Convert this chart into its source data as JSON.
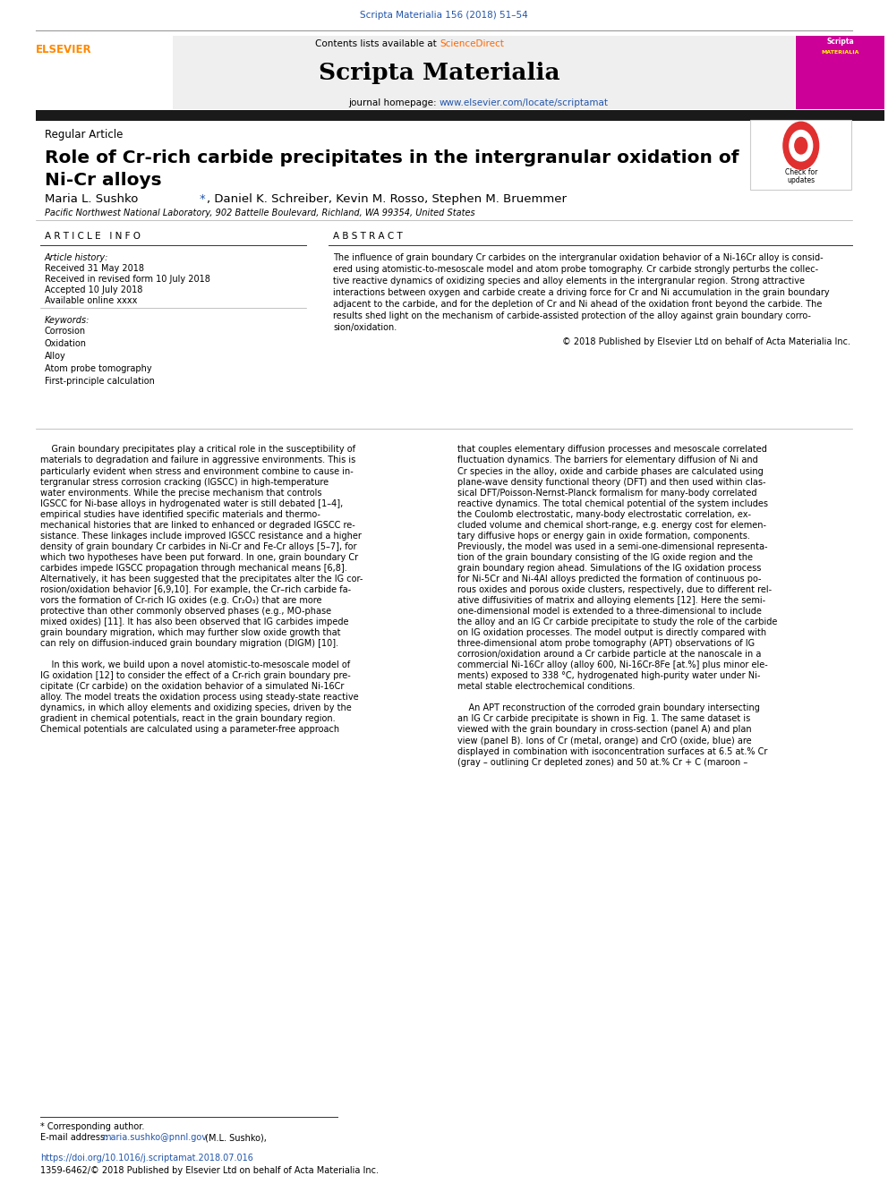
{
  "page_width": 9.92,
  "page_height": 13.23,
  "bg_color": "#ffffff",
  "top_journal_line": "Scripta Materialia 156 (2018) 51–54",
  "top_journal_color": "#2255aa",
  "header_bg": "#efefef",
  "contents_text": "Contents lists available at ",
  "sciencedirect_text": "ScienceDirect",
  "sciencedirect_color": "#ff6600",
  "journal_name": "Scripta Materialia",
  "journal_homepage_prefix": "journal homepage: ",
  "journal_url": "www.elsevier.com/locate/scriptamat",
  "journal_url_color": "#2255aa",
  "article_type": "Regular Article",
  "title_line1": "Role of Cr-rich carbide precipitates in the intergranular oxidation of",
  "title_line2": "Ni-Cr alloys",
  "author_star_color": "#2255aa",
  "affiliation": "Pacific Northwest National Laboratory, 902 Battelle Boulevard, Richland, WA 99354, United States",
  "section_article_info": "A R T I C L E   I N F O",
  "section_abstract": "A B S T R A C T",
  "article_history_label": "Article history:",
  "received": "Received 31 May 2018",
  "revised": "Received in revised form 10 July 2018",
  "accepted": "Accepted 10 July 2018",
  "available": "Available online xxxx",
  "keywords_label": "Keywords:",
  "keywords": [
    "Corrosion",
    "Oxidation",
    "Alloy",
    "Atom probe tomography",
    "First-principle calculation"
  ],
  "copyright_text": "© 2018 Published by Elsevier Ltd on behalf of Acta Materialia Inc.",
  "body1_lines": [
    "    Grain boundary precipitates play a critical role in the susceptibility of",
    "materials to degradation and failure in aggressive environments. This is",
    "particularly evident when stress and environment combine to cause in-",
    "tergranular stress corrosion cracking (IGSCC) in high-temperature",
    "water environments. While the precise mechanism that controls",
    "IGSCC for Ni-base alloys in hydrogenated water is still debated [1–4],",
    "empirical studies have identified specific materials and thermo-",
    "mechanical histories that are linked to enhanced or degraded IGSCC re-",
    "sistance. These linkages include improved IGSCC resistance and a higher",
    "density of grain boundary Cr carbides in Ni-Cr and Fe-Cr alloys [5–7], for",
    "which two hypotheses have been put forward. In one, grain boundary Cr",
    "carbides impede IGSCC propagation through mechanical means [6,8].",
    "Alternatively, it has been suggested that the precipitates alter the IG cor-",
    "rosion/oxidation behavior [6,9,10]. For example, the Cr–rich carbide fa-",
    "vors the formation of Cr-rich IG oxides (e.g. Cr₂O₃) that are more",
    "protective than other commonly observed phases (e.g., MO-phase",
    "mixed oxides) [11]. It has also been observed that IG carbides impede",
    "grain boundary migration, which may further slow oxide growth that",
    "can rely on diffusion-induced grain boundary migration (DIGM) [10].",
    "",
    "    In this work, we build upon a novel atomistic-to-mesoscale model of",
    "IG oxidation [12] to consider the effect of a Cr-rich grain boundary pre-",
    "cipitate (Cr carbide) on the oxidation behavior of a simulated Ni-16Cr",
    "alloy. The model treats the oxidation process using steady-state reactive",
    "dynamics, in which alloy elements and oxidizing species, driven by the",
    "gradient in chemical potentials, react in the grain boundary region.",
    "Chemical potentials are calculated using a parameter-free approach"
  ],
  "body2_lines": [
    "that couples elementary diffusion processes and mesoscale correlated",
    "fluctuation dynamics. The barriers for elementary diffusion of Ni and",
    "Cr species in the alloy, oxide and carbide phases are calculated using",
    "plane-wave density functional theory (DFT) and then used within clas-",
    "sical DFT/Poisson-Nernst-Planck formalism for many-body correlated",
    "reactive dynamics. The total chemical potential of the system includes",
    "the Coulomb electrostatic, many-body electrostatic correlation, ex-",
    "cluded volume and chemical short-range, e.g. energy cost for elemen-",
    "tary diffusive hops or energy gain in oxide formation, components.",
    "Previously, the model was used in a semi-one-dimensional representa-",
    "tion of the grain boundary consisting of the IG oxide region and the",
    "grain boundary region ahead. Simulations of the IG oxidation process",
    "for Ni-5Cr and Ni-4Al alloys predicted the formation of continuous po-",
    "rous oxides and porous oxide clusters, respectively, due to different rel-",
    "ative diffusivities of matrix and alloying elements [12]. Here the semi-",
    "one-dimensional model is extended to a three-dimensional to include",
    "the alloy and an IG Cr carbide precipitate to study the role of the carbide",
    "on IG oxidation processes. The model output is directly compared with",
    "three-dimensional atom probe tomography (APT) observations of IG",
    "corrosion/oxidation around a Cr carbide particle at the nanoscale in a",
    "commercial Ni-16Cr alloy (alloy 600, Ni-16Cr-8Fe [at.%] plus minor ele-",
    "ments) exposed to 338 °C, hydrogenated high-purity water under Ni-",
    "metal stable electrochemical conditions.",
    "",
    "    An APT reconstruction of the corroded grain boundary intersecting",
    "an IG Cr carbide precipitate is shown in Fig. 1. The same dataset is",
    "viewed with the grain boundary in cross-section (panel A) and plan",
    "view (panel B). Ions of Cr (metal, orange) and CrO (oxide, blue) are",
    "displayed in combination with isoconcentration surfaces at 6.5 at.% Cr",
    "(gray – outlining Cr depleted zones) and 50 at.% Cr + C (maroon –"
  ],
  "abstract_lines": [
    "The influence of grain boundary Cr carbides on the intergranular oxidation behavior of a Ni-16Cr alloy is consid-",
    "ered using atomistic-to-mesoscale model and atom probe tomography. Cr carbide strongly perturbs the collec-",
    "tive reactive dynamics of oxidizing species and alloy elements in the intergranular region. Strong attractive",
    "interactions between oxygen and carbide create a driving force for Cr and Ni accumulation in the grain boundary",
    "adjacent to the carbide, and for the depletion of Cr and Ni ahead of the oxidation front beyond the carbide. The",
    "results shed light on the mechanism of carbide-assisted protection of the alloy against grain boundary corro-",
    "sion/oxidation."
  ],
  "footer_star_text": "* Corresponding author.",
  "footer_email_label": "E-mail address: ",
  "footer_email": "maria.sushko@pnnl.gov",
  "footer_email_color": "#2255aa",
  "footer_email_suffix": " (M.L. Sushko),",
  "footer_doi_color": "#2255aa",
  "footer_doi": "https://doi.org/10.1016/j.scriptamat.2018.07.016",
  "footer_issn": "1359-6462/© 2018 Published by Elsevier Ltd on behalf of Acta Materialia Inc.",
  "thick_bar_color": "#1a1a1a",
  "elsevier_color": "#ff8800"
}
